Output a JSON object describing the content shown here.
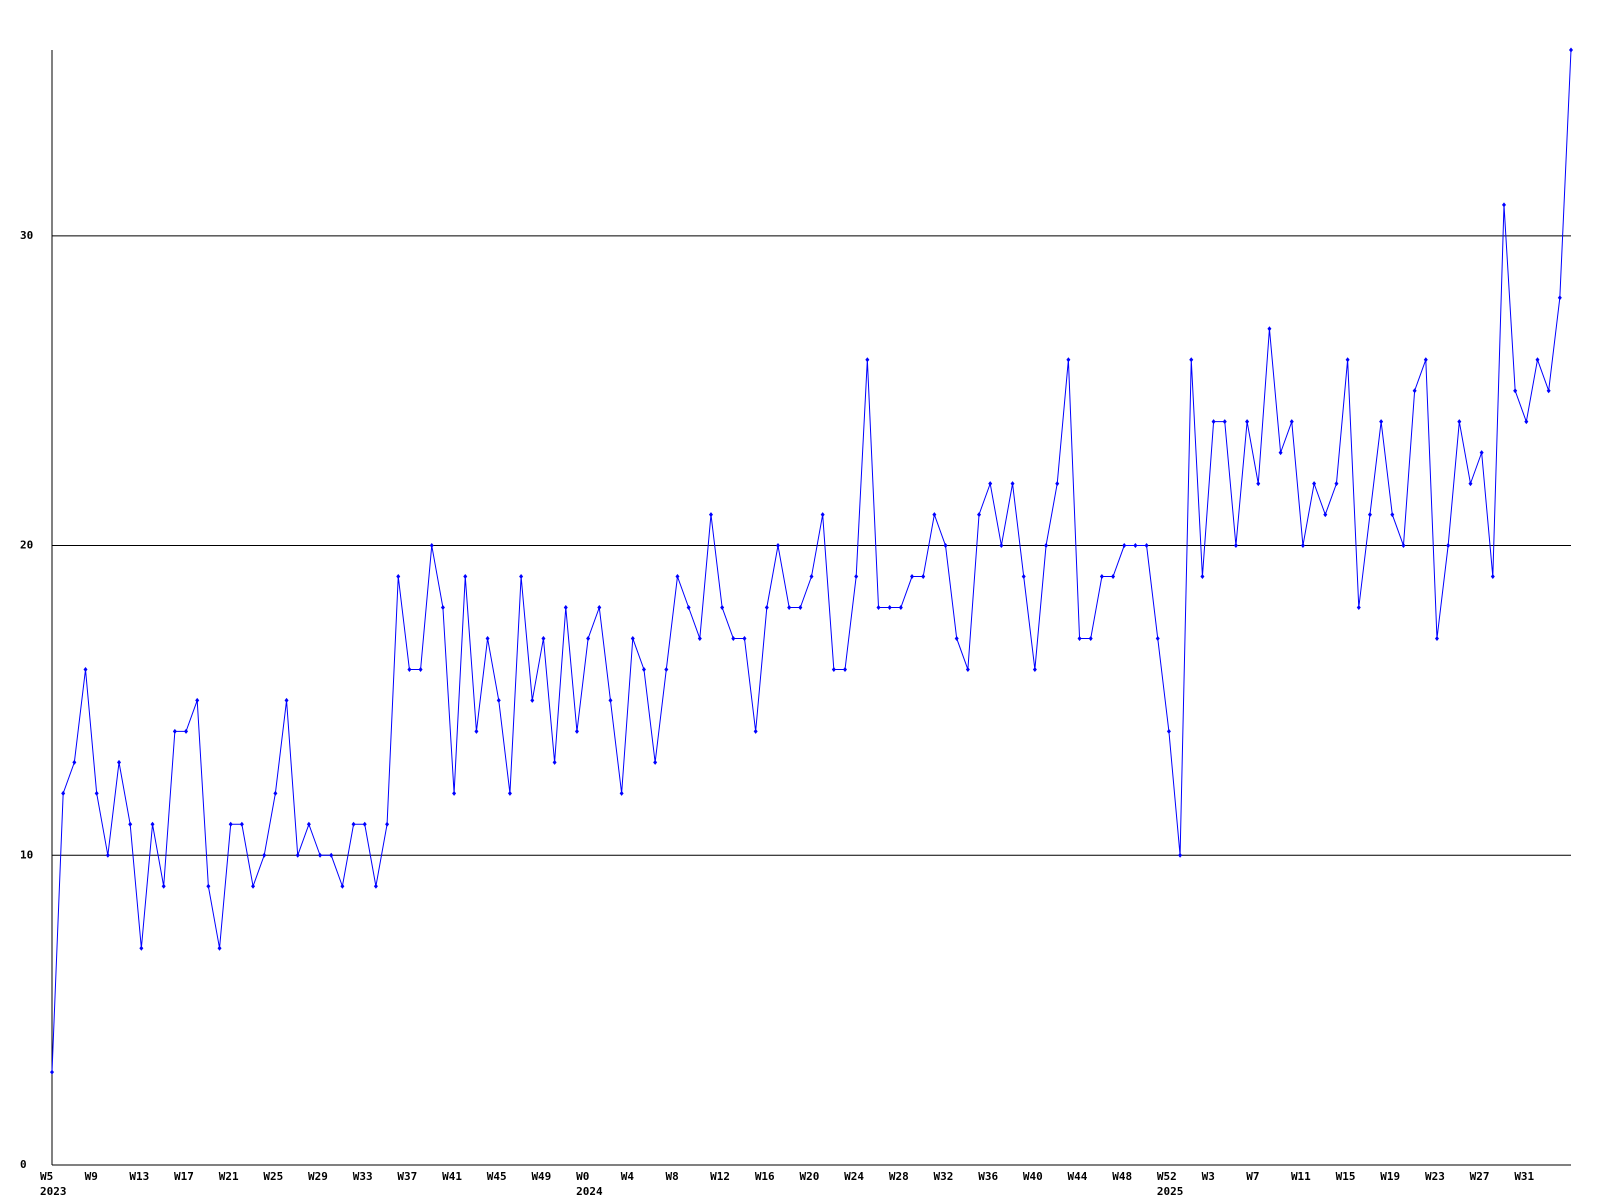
{
  "chart_data": {
    "type": "line",
    "categories": [
      "W5",
      null,
      null,
      null,
      "W9",
      null,
      null,
      null,
      "W13",
      null,
      null,
      null,
      "W17",
      null,
      null,
      null,
      "W21",
      null,
      null,
      null,
      "W25",
      null,
      null,
      null,
      "W29",
      null,
      null,
      null,
      "W33",
      null,
      null,
      null,
      "W37",
      null,
      null,
      null,
      "W41",
      null,
      null,
      null,
      "W45",
      null,
      null,
      null,
      "W49",
      null,
      null,
      null,
      "W0",
      null,
      null,
      null,
      "W4",
      null,
      null,
      null,
      "W8",
      null,
      null,
      null,
      "W12",
      null,
      null,
      null,
      "W16",
      null,
      null,
      null,
      "W20",
      null,
      null,
      null,
      "W24",
      null,
      null,
      null,
      "W28",
      null,
      null,
      null,
      "W32",
      null,
      null,
      null,
      "W36",
      null,
      null,
      null,
      "W40",
      null,
      null,
      null,
      "W44",
      null,
      null,
      null,
      "W48",
      null,
      null,
      null,
      "W52",
      null,
      null,
      null,
      "W3",
      null,
      null,
      null,
      "W7",
      null,
      null,
      null,
      "W11",
      null,
      null,
      null,
      "W15",
      null,
      null,
      null,
      "W19",
      null,
      null,
      null,
      "W23",
      null,
      null,
      null,
      "W27",
      null,
      null,
      null,
      "W31",
      null,
      null,
      null,
      null
    ],
    "x_sublabels": [
      "2023",
      null,
      null,
      null,
      null,
      null,
      null,
      null,
      null,
      null,
      null,
      null,
      null,
      null,
      null,
      null,
      null,
      null,
      null,
      null,
      null,
      null,
      null,
      null,
      null,
      null,
      null,
      null,
      null,
      null,
      null,
      null,
      null,
      null,
      null,
      null,
      null,
      null,
      null,
      null,
      null,
      null,
      null,
      null,
      null,
      null,
      null,
      null,
      "2024",
      null,
      null,
      null,
      null,
      null,
      null,
      null,
      null,
      null,
      null,
      null,
      null,
      null,
      null,
      null,
      null,
      null,
      null,
      null,
      null,
      null,
      null,
      null,
      null,
      null,
      null,
      null,
      null,
      null,
      null,
      null,
      null,
      null,
      null,
      null,
      null,
      null,
      null,
      null,
      null,
      null,
      null,
      null,
      null,
      null,
      null,
      null,
      null,
      null,
      null,
      null,
      "2025",
      null,
      null,
      null,
      null,
      null,
      null,
      null,
      null,
      null,
      null,
      null,
      null,
      null,
      null,
      null,
      null,
      null,
      null,
      null,
      null,
      null,
      null,
      null,
      null,
      null,
      null,
      null,
      null,
      null,
      null,
      null,
      null,
      null,
      null,
      null
    ],
    "series": [
      {
        "color": "#0000ff",
        "values": [
          3,
          12,
          13,
          16,
          12,
          10,
          13,
          11,
          7,
          11,
          9,
          14,
          14,
          15,
          9,
          7,
          11,
          11,
          9,
          10,
          12,
          15,
          10,
          11,
          10,
          10,
          9,
          11,
          11,
          9,
          11,
          19,
          16,
          16,
          20,
          18,
          12,
          19,
          14,
          17,
          15,
          12,
          19,
          15,
          17,
          13,
          18,
          14,
          17,
          18,
          15,
          12,
          17,
          16,
          13,
          16,
          19,
          18,
          17,
          21,
          18,
          17,
          17,
          14,
          18,
          20,
          18,
          18,
          19,
          21,
          16,
          16,
          19,
          26,
          18,
          18,
          18,
          19,
          19,
          21,
          20,
          17,
          16,
          21,
          22,
          20,
          22,
          19,
          16,
          20,
          22,
          26,
          17,
          17,
          19,
          19,
          20,
          20,
          20,
          17,
          14,
          10,
          26,
          19,
          24,
          24,
          20,
          24,
          22,
          27,
          23,
          24,
          20,
          22,
          21,
          22,
          26,
          18,
          21,
          24,
          21,
          20,
          25,
          26,
          17,
          20,
          24,
          22,
          23,
          19,
          31,
          25,
          24,
          26,
          25,
          28,
          36
        ]
      }
    ],
    "ylim": [
      0,
      36
    ],
    "yticks": [
      0,
      10,
      20,
      30
    ],
    "grid": true
  }
}
